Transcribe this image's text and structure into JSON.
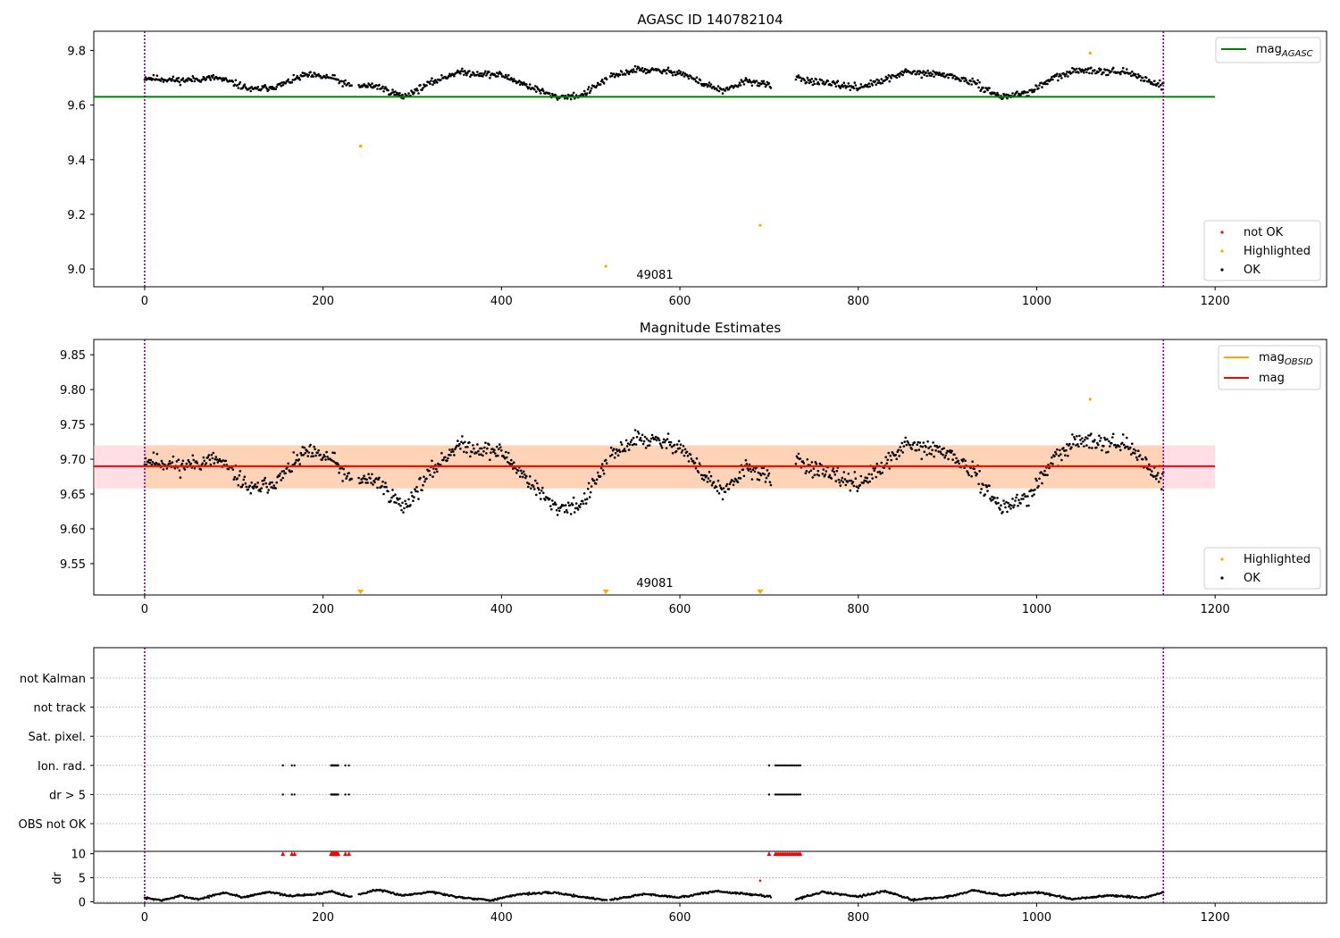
{
  "chart_data": [
    {
      "type": "scatter",
      "title": "AGASC ID 140782104",
      "xlim": [
        -57,
        1325
      ],
      "ylim": [
        8.935,
        9.87
      ],
      "xticks": [
        0,
        200,
        400,
        600,
        800,
        1000,
        1200
      ],
      "yticks": [
        9.0,
        9.2,
        9.4,
        9.6,
        9.8
      ],
      "ytick_labels": [
        "9.0",
        "9.2",
        "9.4",
        "9.6",
        "9.8"
      ],
      "obsid_label": "49081",
      "obsid_label_x": 570,
      "vlines": [
        0,
        1142
      ],
      "vline_color": "#800080",
      "lines": [
        {
          "name": "mag",
          "subscript": "AGASC",
          "color": "#008000",
          "y": 9.63,
          "x": [
            -57,
            1200
          ]
        }
      ],
      "legend_top": {
        "position": "upper right",
        "entries": [
          {
            "label": "mag",
            "subscript": "AGASC",
            "color": "#008000"
          }
        ]
      },
      "legend_bottom": {
        "position": "lower right",
        "entries": [
          {
            "label": "not OK",
            "color": "#ff0000"
          },
          {
            "label": "Highlighted",
            "color": "#ffa500"
          },
          {
            "label": "OK",
            "color": "#000000"
          }
        ]
      },
      "highlighted_points": [
        {
          "x": 242,
          "y": 9.45
        },
        {
          "x": 517,
          "y": 9.01
        },
        {
          "x": 690,
          "y": 9.16
        },
        {
          "x": 1060,
          "y": 9.79
        }
      ],
      "ok_series": {
        "color": "#000000",
        "segments": [
          [
            0,
            232
          ],
          [
            240,
            518
          ],
          [
            522,
            702
          ],
          [
            730,
            1142
          ]
        ],
        "profile": [
          [
            0,
            9.7
          ],
          [
            40,
            9.69
          ],
          [
            80,
            9.7
          ],
          [
            100,
            9.68
          ],
          [
            120,
            9.655
          ],
          [
            150,
            9.67
          ],
          [
            180,
            9.71
          ],
          [
            210,
            9.7
          ],
          [
            230,
            9.67
          ],
          [
            260,
            9.67
          ],
          [
            290,
            9.63
          ],
          [
            320,
            9.68
          ],
          [
            350,
            9.72
          ],
          [
            400,
            9.71
          ],
          [
            430,
            9.67
          ],
          [
            460,
            9.63
          ],
          [
            490,
            9.635
          ],
          [
            520,
            9.7
          ],
          [
            550,
            9.73
          ],
          [
            600,
            9.72
          ],
          [
            625,
            9.68
          ],
          [
            650,
            9.65
          ],
          [
            675,
            9.69
          ],
          [
            702,
            9.67
          ],
          [
            730,
            9.7
          ],
          [
            760,
            9.68
          ],
          [
            800,
            9.665
          ],
          [
            830,
            9.69
          ],
          [
            850,
            9.72
          ],
          [
            900,
            9.71
          ],
          [
            930,
            9.68
          ],
          [
            960,
            9.63
          ],
          [
            990,
            9.645
          ],
          [
            1020,
            9.7
          ],
          [
            1050,
            9.73
          ],
          [
            1100,
            9.72
          ],
          [
            1142,
            9.67
          ]
        ],
        "noise": 0.012
      }
    },
    {
      "type": "scatter",
      "title": "Magnitude Estimates",
      "xlim": [
        -57,
        1325
      ],
      "ylim": [
        9.505,
        9.872
      ],
      "xticks": [
        0,
        200,
        400,
        600,
        800,
        1000,
        1200
      ],
      "yticks": [
        9.55,
        9.6,
        9.65,
        9.7,
        9.75,
        9.8,
        9.85
      ],
      "ytick_labels": [
        "9.55",
        "9.60",
        "9.65",
        "9.70",
        "9.75",
        "9.80",
        "9.85"
      ],
      "obsid_label": "49081",
      "obsid_label_x": 570,
      "vlines": [
        0,
        1142
      ],
      "vline_color": "#800080",
      "bands": [
        {
          "y0": 9.658,
          "y1": 9.72,
          "x": [
            -57,
            1200
          ],
          "color": "#ffc0cb",
          "opacity": 0.5
        },
        {
          "y0": 9.658,
          "y1": 9.72,
          "x": [
            0,
            1142
          ],
          "color": "#ffa500",
          "opacity": 0.2
        }
      ],
      "lines": [
        {
          "name": "mag",
          "subscript": "OBSID",
          "color": "#ffa500",
          "y": 9.69,
          "x": [
            0,
            1142
          ]
        },
        {
          "name": "mag",
          "subscript": "",
          "color": "#ff0000",
          "y": 9.69,
          "x": [
            -57,
            1200
          ]
        }
      ],
      "legend_top": {
        "position": "upper right",
        "entries": [
          {
            "label": "mag",
            "subscript": "OBSID",
            "color": "#ffa500"
          },
          {
            "label": "mag",
            "subscript": "",
            "color": "#ff0000"
          }
        ]
      },
      "legend_bottom": {
        "position": "lower right",
        "entries": [
          {
            "label": "Highlighted",
            "color": "#ffa500"
          },
          {
            "label": "OK",
            "color": "#000000"
          }
        ]
      },
      "highlighted_points": [
        {
          "x": 1060,
          "y": 9.786
        }
      ],
      "lower_markers": [
        242,
        517,
        690
      ],
      "ok_series": {
        "color": "#000000",
        "segments": [
          [
            0,
            232
          ],
          [
            240,
            518
          ],
          [
            522,
            702
          ],
          [
            730,
            1142
          ]
        ],
        "profile": [
          [
            0,
            9.7
          ],
          [
            40,
            9.69
          ],
          [
            80,
            9.7
          ],
          [
            100,
            9.68
          ],
          [
            120,
            9.655
          ],
          [
            150,
            9.67
          ],
          [
            180,
            9.71
          ],
          [
            210,
            9.7
          ],
          [
            230,
            9.67
          ],
          [
            260,
            9.67
          ],
          [
            290,
            9.63
          ],
          [
            320,
            9.68
          ],
          [
            350,
            9.72
          ],
          [
            400,
            9.71
          ],
          [
            430,
            9.67
          ],
          [
            460,
            9.63
          ],
          [
            490,
            9.635
          ],
          [
            520,
            9.7
          ],
          [
            550,
            9.73
          ],
          [
            600,
            9.72
          ],
          [
            625,
            9.68
          ],
          [
            650,
            9.65
          ],
          [
            675,
            9.69
          ],
          [
            702,
            9.67
          ],
          [
            730,
            9.7
          ],
          [
            760,
            9.68
          ],
          [
            800,
            9.665
          ],
          [
            830,
            9.69
          ],
          [
            850,
            9.72
          ],
          [
            900,
            9.71
          ],
          [
            930,
            9.68
          ],
          [
            960,
            9.63
          ],
          [
            990,
            9.645
          ],
          [
            1020,
            9.7
          ],
          [
            1050,
            9.73
          ],
          [
            1100,
            9.72
          ],
          [
            1142,
            9.67
          ]
        ],
        "noise": 0.012
      }
    },
    {
      "type": "scatter",
      "title": "",
      "xlim": [
        -57,
        1325
      ],
      "xticks": [
        0,
        200,
        400,
        600,
        800,
        1000,
        1200
      ],
      "vlines": [
        0,
        1142
      ],
      "vline_color": "#800080",
      "flag_rows": [
        "not Kalman",
        "not track",
        "Sat. pixel.",
        "Ion. rad.",
        "dr > 5",
        "OBS not OK"
      ],
      "flag_points": {
        "Ion. rad.": [
          155,
          165,
          168,
          209,
          210,
          211,
          212,
          213,
          214,
          215,
          216,
          217,
          225,
          229,
          700,
          707,
          709,
          711,
          713,
          715,
          717,
          719,
          721,
          723,
          725,
          727,
          729,
          731,
          733,
          735
        ],
        "dr > 5": [
          155,
          165,
          168,
          209,
          210,
          211,
          212,
          213,
          214,
          215,
          216,
          217,
          225,
          229,
          700,
          707,
          709,
          711,
          713,
          715,
          717,
          719,
          721,
          723,
          725,
          727,
          729,
          731,
          733,
          735
        ]
      },
      "dr_panel": {
        "ylabel": "dr",
        "ylim": [
          -0.3,
          10.5
        ],
        "yticks": [
          0,
          5,
          10
        ],
        "ytick_labels": [
          "0",
          "5",
          "10"
        ],
        "clipped_value": 10,
        "clipped_color": "#ff0000",
        "clipped_x": [
          155,
          165,
          168,
          209,
          210,
          211,
          212,
          213,
          214,
          215,
          216,
          217,
          225,
          229,
          700,
          707,
          709,
          711,
          713,
          715,
          717,
          719,
          721,
          723,
          725,
          727,
          729,
          731,
          733,
          735
        ],
        "outliers": [
          {
            "x": 690,
            "y": 4.4,
            "color": "#ff0000"
          }
        ],
        "ok_color": "#000000",
        "segments": [
          [
            0,
            232
          ],
          [
            240,
            518
          ],
          [
            522,
            702
          ],
          [
            730,
            1142
          ]
        ],
        "profile": [
          [
            0,
            0.8
          ],
          [
            20,
            0.3
          ],
          [
            40,
            1.2
          ],
          [
            60,
            0.5
          ],
          [
            90,
            1.9
          ],
          [
            110,
            0.9
          ],
          [
            140,
            2.1
          ],
          [
            160,
            1.2
          ],
          [
            190,
            1.5
          ],
          [
            210,
            2.2
          ],
          [
            230,
            1.0
          ],
          [
            260,
            2.5
          ],
          [
            290,
            1.3
          ],
          [
            320,
            2.1
          ],
          [
            350,
            1.0
          ],
          [
            390,
            0.3
          ],
          [
            420,
            1.6
          ],
          [
            460,
            1.9
          ],
          [
            490,
            1.0
          ],
          [
            520,
            0.3
          ],
          [
            560,
            1.6
          ],
          [
            600,
            0.9
          ],
          [
            640,
            2.2
          ],
          [
            680,
            1.5
          ],
          [
            702,
            1.1
          ],
          [
            730,
            0.5
          ],
          [
            760,
            2.0
          ],
          [
            800,
            1.1
          ],
          [
            830,
            2.2
          ],
          [
            860,
            0.4
          ],
          [
            900,
            1.0
          ],
          [
            930,
            2.4
          ],
          [
            960,
            1.3
          ],
          [
            1000,
            2.0
          ],
          [
            1040,
            0.5
          ],
          [
            1080,
            1.3
          ],
          [
            1120,
            0.8
          ],
          [
            1142,
            2.0
          ]
        ],
        "noise": 0.2
      }
    }
  ]
}
